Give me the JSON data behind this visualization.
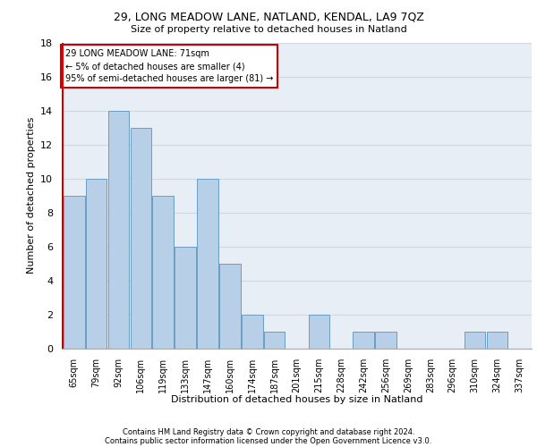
{
  "title1": "29, LONG MEADOW LANE, NATLAND, KENDAL, LA9 7QZ",
  "title2": "Size of property relative to detached houses in Natland",
  "xlabel": "Distribution of detached houses by size in Natland",
  "ylabel": "Number of detached properties",
  "categories": [
    "65sqm",
    "79sqm",
    "92sqm",
    "106sqm",
    "119sqm",
    "133sqm",
    "147sqm",
    "160sqm",
    "174sqm",
    "187sqm",
    "201sqm",
    "215sqm",
    "228sqm",
    "242sqm",
    "256sqm",
    "269sqm",
    "283sqm",
    "296sqm",
    "310sqm",
    "324sqm",
    "337sqm"
  ],
  "values": [
    9,
    10,
    14,
    13,
    9,
    6,
    10,
    5,
    2,
    1,
    0,
    2,
    0,
    1,
    1,
    0,
    0,
    0,
    1,
    1,
    0
  ],
  "bar_color": "#b8cfe8",
  "bar_edge_color": "#6a9ec5",
  "annotation_box_color": "#cc0000",
  "annotation_text": "29 LONG MEADOW LANE: 71sqm\n← 5% of detached houses are smaller (4)\n95% of semi-detached houses are larger (81) →",
  "ylim": [
    0,
    18
  ],
  "yticks": [
    0,
    2,
    4,
    6,
    8,
    10,
    12,
    14,
    16,
    18
  ],
  "grid_color": "#d0d8e4",
  "bg_color": "#e8eef5",
  "footer1": "Contains HM Land Registry data © Crown copyright and database right 2024.",
  "footer2": "Contains public sector information licensed under the Open Government Licence v3.0."
}
